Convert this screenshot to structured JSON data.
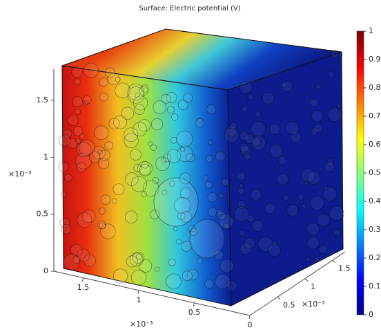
{
  "chart_data": {
    "type": "surface3d",
    "title": "Surface: Electric potential (V)",
    "colorbar": {
      "ticks": [
        0,
        0.1,
        0.2,
        0.3,
        0.4,
        0.5,
        0.6,
        0.7,
        0.8,
        0.9,
        1
      ]
    },
    "z_axis": {
      "ticks": [
        0,
        0.5,
        1,
        1.5
      ],
      "exponent": "×10⁻³"
    },
    "x_axis": {
      "ticks": [
        1.5,
        1,
        0.5,
        0
      ],
      "exponent": "×10⁻³"
    },
    "y_axis": {
      "ticks": [
        0.5,
        1,
        1.5
      ],
      "exponent": "×10⁻³"
    }
  }
}
